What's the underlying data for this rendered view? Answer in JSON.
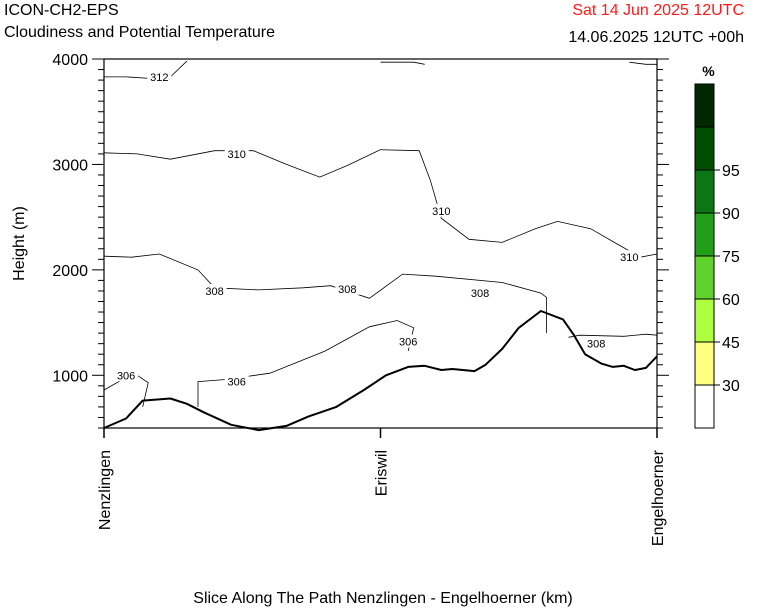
{
  "header": {
    "model": "ICON-CH2-EPS",
    "subtitle": "Cloudiness and Potential Temperature",
    "valid_time": "Sat 14 Jun 2025 12UTC",
    "run_info": "14.06.2025 12UTC +00h"
  },
  "chart_data": {
    "type": "contour",
    "title": "Cloudiness and Potential Temperature",
    "xlabel": "Slice Along The Path Nenzlingen - Engelhoerner (km)",
    "ylabel": "Height (m)",
    "ylim": [
      500,
      4000
    ],
    "y_ticks": [
      1000,
      2000,
      3000,
      4000
    ],
    "x_ticks": [
      "Nenzlingen",
      "Eriswil",
      "Engelhoerner"
    ],
    "terrain": {
      "x": [
        0,
        0.04,
        0.07,
        0.12,
        0.15,
        0.18,
        0.23,
        0.28,
        0.33,
        0.37,
        0.42,
        0.47,
        0.51,
        0.55,
        0.58,
        0.61,
        0.63,
        0.67,
        0.69,
        0.72,
        0.75,
        0.79,
        0.83,
        0.85,
        0.87,
        0.9,
        0.92,
        0.94,
        0.96,
        0.98,
        1.0
      ],
      "height": [
        500,
        590,
        760,
        780,
        730,
        650,
        530,
        480,
        520,
        610,
        700,
        860,
        1000,
        1080,
        1090,
        1050,
        1060,
        1040,
        1100,
        1250,
        1450,
        1610,
        1530,
        1380,
        1200,
        1110,
        1080,
        1090,
        1050,
        1070,
        1180
      ]
    },
    "isentropes_K": [
      {
        "theta": 306,
        "x": [
          0,
          0.03,
          0.06,
          0.08,
          0.07
        ],
        "height": [
          860,
          950,
          1000,
          930,
          700
        ]
      },
      {
        "theta": 306,
        "x": [
          0.17,
          0.17,
          0.22,
          0.3,
          0.4,
          0.48,
          0.53,
          0.56,
          0.55
        ],
        "height": [
          700,
          940,
          960,
          1020,
          1230,
          1460,
          1520,
          1450,
          1230
        ]
      },
      {
        "theta": 308,
        "x": [
          0,
          0.05,
          0.1,
          0.17,
          0.2,
          0.28,
          0.36,
          0.41,
          0.48,
          0.54,
          0.6,
          0.72,
          0.79,
          0.8,
          0.8
        ],
        "height": [
          2130,
          2120,
          2150,
          2000,
          1830,
          1810,
          1830,
          1850,
          1730,
          1960,
          1940,
          1880,
          1780,
          1740,
          1400
        ]
      },
      {
        "theta": 308,
        "x": [
          0.84,
          0.86,
          0.94,
          0.98,
          1.0
        ],
        "height": [
          1360,
          1380,
          1370,
          1390,
          1380
        ]
      },
      {
        "theta": 310,
        "x": [
          0,
          0.06,
          0.12,
          0.2,
          0.27,
          0.33,
          0.39,
          0.44,
          0.5,
          0.57,
          0.59,
          0.61,
          0.66,
          0.72,
          0.78,
          0.82,
          0.88,
          0.93,
          0.97,
          1.0
        ],
        "height": [
          3110,
          3100,
          3050,
          3130,
          3130,
          3000,
          2880,
          2990,
          3140,
          3130,
          2850,
          2490,
          2290,
          2260,
          2390,
          2460,
          2390,
          2240,
          2120,
          2150
        ]
      },
      {
        "theta": 312,
        "x": [
          0,
          0.04,
          0.1,
          0.12,
          0.15
        ],
        "height": [
          3830,
          3830,
          3810,
          3830,
          3980
        ]
      },
      {
        "theta": 312,
        "x": [
          0.5,
          0.56,
          0.58
        ],
        "height": [
          3970,
          3970,
          3950
        ]
      },
      {
        "theta": 312,
        "x": [
          0.95,
          0.98,
          1.0
        ],
        "height": [
          3970,
          3950,
          3950
        ]
      }
    ],
    "contour_labels": [
      {
        "text": "312",
        "x": 0.1,
        "height": 3830
      },
      {
        "text": "310",
        "x": 0.24,
        "height": 3100
      },
      {
        "text": "310",
        "x": 0.61,
        "height": 2560
      },
      {
        "text": "310",
        "x": 0.95,
        "height": 2120
      },
      {
        "text": "308",
        "x": 0.2,
        "height": 1800
      },
      {
        "text": "308",
        "x": 0.44,
        "height": 1820
      },
      {
        "text": "308",
        "x": 0.68,
        "height": 1780
      },
      {
        "text": "308",
        "x": 0.89,
        "height": 1300
      },
      {
        "text": "306",
        "x": 0.04,
        "height": 1000
      },
      {
        "text": "306",
        "x": 0.24,
        "height": 940
      },
      {
        "text": "306",
        "x": 0.55,
        "height": 1320
      }
    ],
    "colorbar": {
      "unit": "%",
      "levels": [
        "30",
        "45",
        "60",
        "75",
        "90",
        "95"
      ],
      "colors": [
        "#ffffff",
        "#ffff7f",
        "#adff3f",
        "#5fd32b",
        "#229e18",
        "#0b7614",
        "#004c00",
        "#002800"
      ]
    }
  }
}
